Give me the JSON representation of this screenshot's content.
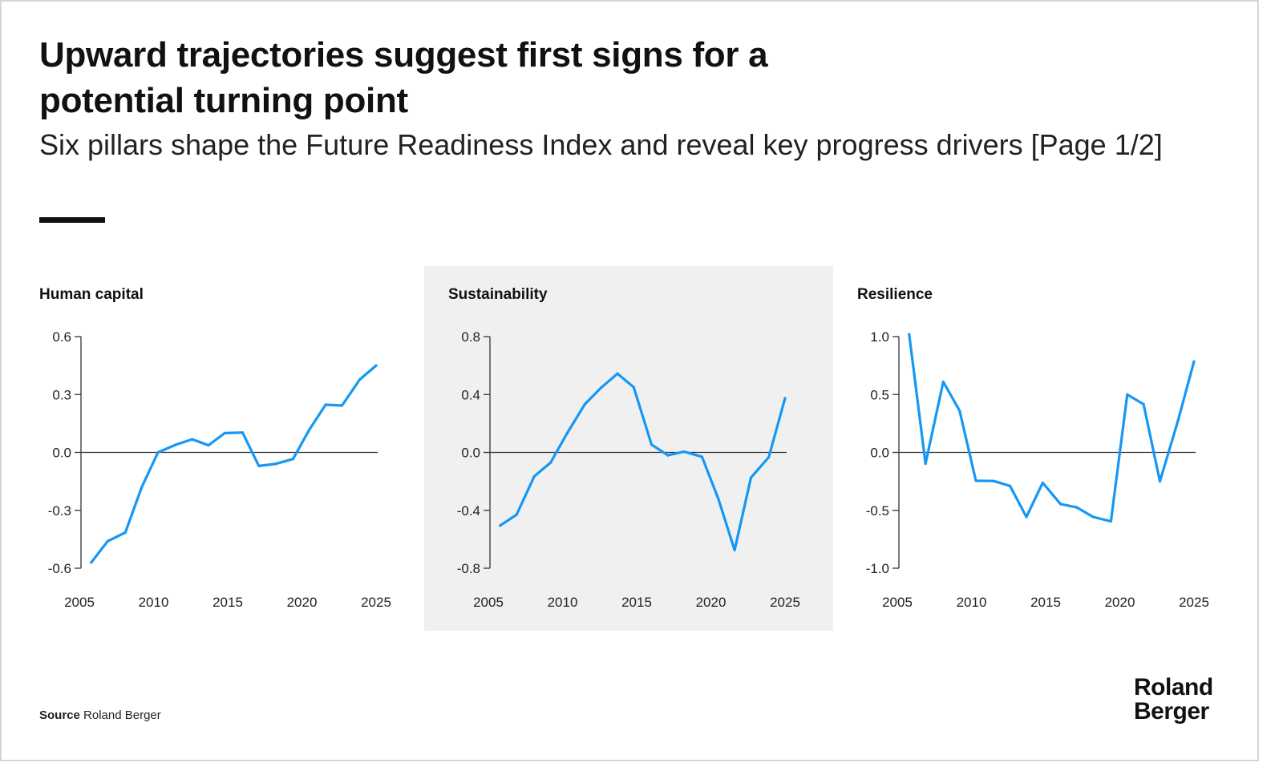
{
  "header": {
    "title": "Upward trajectories suggest first signs for a potential turning point",
    "subtitle": "Six pillars shape the Future Readiness Index and reveal key progress drivers [Page 1/2]"
  },
  "footer": {
    "source_label": "Source",
    "source_value": "Roland Berger",
    "logo_line1": "Roland",
    "logo_line2": "Berger"
  },
  "colors": {
    "line": "#1597F6",
    "axis": "#333333",
    "highlight_bg": "#F0F0F0"
  },
  "chart_data": [
    {
      "type": "line",
      "title": "Human capital",
      "xlabel": "",
      "ylabel": "",
      "xlim": [
        2005,
        2025
      ],
      "ylim": [
        -0.6,
        0.6
      ],
      "xticks": [
        "2005",
        "2010",
        "2015",
        "2020",
        "2025"
      ],
      "yticks": [
        "0.6",
        "0.3",
        "0.0",
        "-0.3",
        "-0.6"
      ],
      "ytick_values": [
        0.6,
        0.3,
        0,
        -0.3,
        -0.6
      ],
      "x": [
        2005.8,
        2006.9,
        2008.1,
        2009.2,
        2010.3,
        2011.5,
        2012.6,
        2013.7,
        2014.8,
        2016.0,
        2017.1,
        2018.2,
        2019.4,
        2020.5,
        2021.6,
        2022.7,
        2023.9,
        2025.0
      ],
      "values": [
        -0.57,
        -0.46,
        -0.415,
        -0.18,
        0.0,
        0.04,
        0.068,
        0.037,
        0.1,
        0.103,
        -0.07,
        -0.06,
        -0.034,
        0.118,
        0.247,
        0.243,
        0.378,
        0.45
      ],
      "highlighted": false
    },
    {
      "type": "line",
      "title": "Sustainability",
      "xlabel": "",
      "ylabel": "",
      "xlim": [
        2005,
        2025
      ],
      "ylim": [
        -0.8,
        0.8
      ],
      "xticks": [
        "2005",
        "2010",
        "2015",
        "2020",
        "2025"
      ],
      "yticks": [
        "0.8",
        "0.4",
        "0.0",
        "-0.4",
        "-0.8"
      ],
      "ytick_values": [
        0.8,
        0.4,
        0,
        -0.4,
        -0.8
      ],
      "x": [
        2005.8,
        2006.9,
        2008.1,
        2009.2,
        2010.3,
        2011.5,
        2012.6,
        2013.7,
        2014.8,
        2016.0,
        2017.1,
        2018.2,
        2019.4,
        2020.5,
        2021.6,
        2022.7,
        2023.9,
        2025.0
      ],
      "values": [
        -0.505,
        -0.43,
        -0.165,
        -0.07,
        0.13,
        0.333,
        0.447,
        0.544,
        0.45,
        0.054,
        -0.02,
        0.005,
        -0.03,
        -0.32,
        -0.675,
        -0.174,
        -0.033,
        0.374
      ],
      "highlighted": true
    },
    {
      "type": "line",
      "title": "Resilience",
      "xlabel": "",
      "ylabel": "",
      "xlim": [
        2005,
        2025
      ],
      "ylim": [
        -1.0,
        1.0
      ],
      "xticks": [
        "2005",
        "2010",
        "2015",
        "2020",
        "2025"
      ],
      "yticks": [
        "1.0",
        "0.5",
        "0.0",
        "-0.5",
        "-1.0"
      ],
      "ytick_values": [
        1.0,
        0.5,
        0,
        -0.5,
        -1.0
      ],
      "x": [
        2005.8,
        2006.9,
        2008.1,
        2009.2,
        2010.3,
        2011.5,
        2012.6,
        2013.7,
        2014.8,
        2016.0,
        2017.1,
        2018.2,
        2019.4,
        2020.5,
        2021.6,
        2022.7,
        2023.9,
        2025.0
      ],
      "values": [
        1.02,
        -0.097,
        0.61,
        0.36,
        -0.244,
        -0.247,
        -0.29,
        -0.557,
        -0.262,
        -0.446,
        -0.475,
        -0.557,
        -0.595,
        0.5,
        0.416,
        -0.25,
        0.265,
        0.785
      ],
      "highlighted": false
    }
  ]
}
